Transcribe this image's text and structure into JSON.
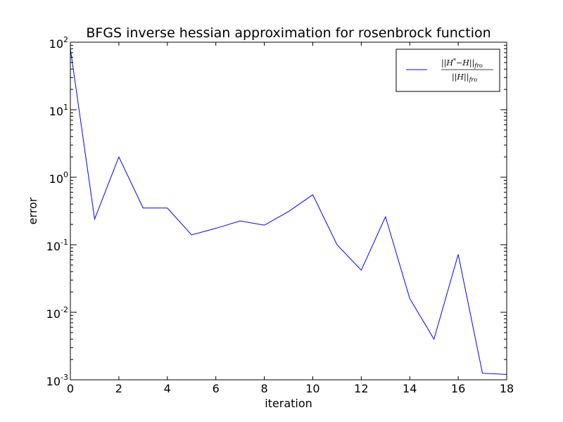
{
  "chart_data": {
    "type": "line",
    "title": "BFGS inverse hessian approximation for rosenbrock function",
    "xlabel": "iteration",
    "ylabel": "error",
    "y_scale": "log",
    "xlim": [
      0,
      18
    ],
    "ylim": [
      0.001,
      100
    ],
    "x_ticks": [
      "0",
      "2",
      "4",
      "6",
      "8",
      "10",
      "12",
      "14",
      "16",
      "18"
    ],
    "y_ticks": [
      {
        "base": "10",
        "exp": "-3",
        "value": 0.001
      },
      {
        "base": "10",
        "exp": "-2",
        "value": 0.01
      },
      {
        "base": "10",
        "exp": "-1",
        "value": 0.1
      },
      {
        "base": "10",
        "exp": "0",
        "value": 1
      },
      {
        "base": "10",
        "exp": "1",
        "value": 10
      },
      {
        "base": "10",
        "exp": "2",
        "value": 100
      }
    ],
    "grid": false,
    "legend_position": "top-right",
    "series": [
      {
        "name": "||H* − H||_fro / ||H||_fro",
        "color": "#0000ff",
        "x": [
          0,
          1,
          2,
          3,
          4,
          5,
          6,
          7,
          8,
          9,
          10,
          11,
          12,
          13,
          14,
          15,
          16,
          17,
          18
        ],
        "y": [
          80,
          0.24,
          2.0,
          0.35,
          0.35,
          0.14,
          0.175,
          0.225,
          0.195,
          0.31,
          0.55,
          0.1,
          0.042,
          0.26,
          0.016,
          0.004,
          0.072,
          0.00125,
          0.0012
        ]
      }
    ]
  }
}
